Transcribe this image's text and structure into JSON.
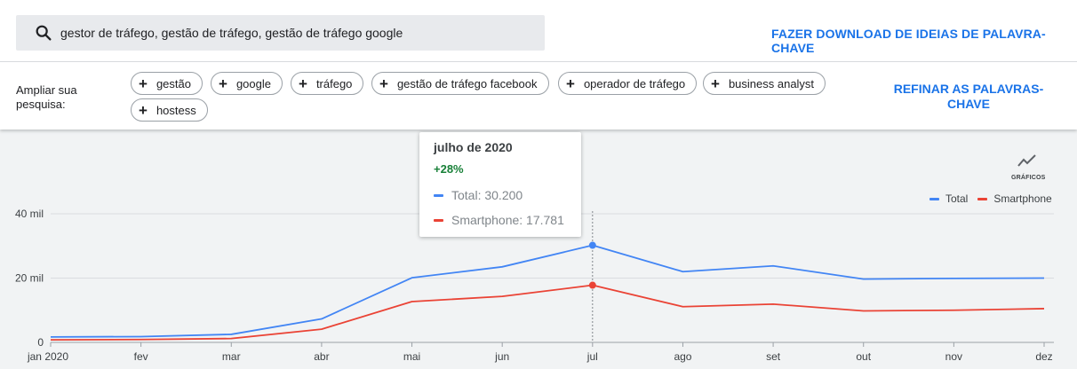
{
  "search": {
    "query": "gestor de tráfego, gestão de tráfego, gestão de tráfego google",
    "download_label": "FAZER DOWNLOAD DE IDEIAS DE PALAVRA-CHAVE"
  },
  "expand": {
    "label": "Ampliar sua pesquisa:",
    "chips": [
      "gestão",
      "google",
      "tráfego",
      "gestão de tráfego facebook",
      "operador de tráfego",
      "business analyst",
      "hostess"
    ],
    "refine_label": "REFINAR AS PALAVRAS-CHAVE"
  },
  "graph_toggle": {
    "label": "GRÁFICOS",
    "icon": "trend-line-icon"
  },
  "tooltip": {
    "title": "julho de 2020",
    "change": "+28%",
    "rows": [
      "Total: 30.200",
      "Smartphone: 17.781"
    ]
  },
  "colors": {
    "total": "#4285f4",
    "smartphone": "#ea4335",
    "accent": "#1a73e8",
    "positive": "#188038"
  },
  "chart_data": {
    "type": "line",
    "categories": [
      "jan 2020",
      "fev",
      "mar",
      "abr",
      "mai",
      "jun",
      "jul",
      "ago",
      "set",
      "out",
      "nov",
      "dez"
    ],
    "y_ticks": [
      "0",
      "20 mil",
      "40 mil"
    ],
    "ylim": [
      0,
      40000
    ],
    "grid": true,
    "legend_placement": "top-right",
    "highlight_index": 6,
    "series": [
      {
        "name": "Total",
        "values": [
          1700,
          1800,
          2500,
          7300,
          20100,
          23500,
          30200,
          22000,
          23800,
          19700,
          19900,
          20000
        ]
      },
      {
        "name": "Smartphone",
        "values": [
          800,
          900,
          1200,
          4100,
          12700,
          14300,
          17781,
          11100,
          11900,
          9800,
          10000,
          10500
        ]
      }
    ]
  }
}
